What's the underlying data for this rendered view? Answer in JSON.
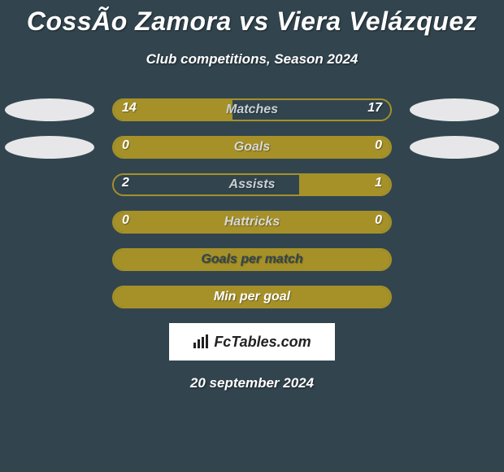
{
  "title": "CossÃ­o Zamora vs Viera Velázquez",
  "subtitle": "Club competitions, Season 2024",
  "date": "20 september 2024",
  "logo": "FcTables.com",
  "colors": {
    "bg": "#32454f",
    "accent": "#a59128",
    "ellipse": "#e7e7e9",
    "text_white": "#ffffff",
    "label_dim": "#9aa8ad",
    "label_bright": "#d8d8d8"
  },
  "stats": [
    {
      "label": "Matches",
      "left_val": "14",
      "right_val": "17",
      "left_pct": 43,
      "right_pct": 57,
      "left_color": "#a59128",
      "right_color": "#32454f",
      "label_color": "#c9d1d4",
      "show_ellipses": true,
      "border_color": "#a59128"
    },
    {
      "label": "Goals",
      "left_val": "0",
      "right_val": "0",
      "left_pct": 50,
      "right_pct": 50,
      "left_color": "#a59128",
      "right_color": "#a59128",
      "label_color": "#d8d8d8",
      "show_ellipses": true,
      "border_color": "#a59128"
    },
    {
      "label": "Assists",
      "left_val": "2",
      "right_val": "1",
      "left_pct": 67,
      "right_pct": 33,
      "left_color": "#32454f",
      "right_color": "#a59128",
      "label_color": "#c9d1d4",
      "show_ellipses": false,
      "border_color": "#a59128"
    },
    {
      "label": "Hattricks",
      "left_val": "0",
      "right_val": "0",
      "left_pct": 50,
      "right_pct": 50,
      "left_color": "#a59128",
      "right_color": "#a59128",
      "label_color": "#d8d8d8",
      "show_ellipses": false,
      "border_color": "#a59128"
    },
    {
      "label": "Goals per match",
      "left_val": "",
      "right_val": "",
      "left_pct": 100,
      "right_pct": 0,
      "left_color": "#a59128",
      "right_color": "#a59128",
      "label_color": "#32454f",
      "show_ellipses": false,
      "border_color": "#a59128"
    },
    {
      "label": "Min per goal",
      "left_val": "",
      "right_val": "",
      "left_pct": 100,
      "right_pct": 0,
      "left_color": "#a59128",
      "right_color": "#a59128",
      "label_color": "#ffffff",
      "show_ellipses": false,
      "border_color": "#a59128"
    }
  ]
}
